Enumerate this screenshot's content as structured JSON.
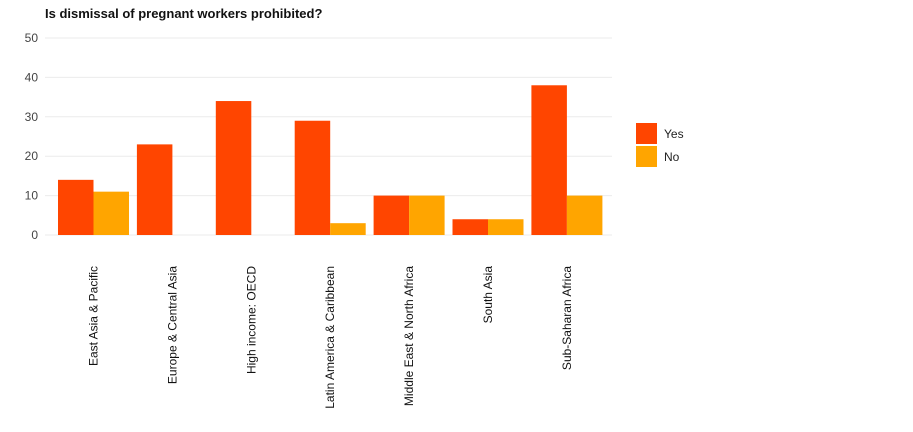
{
  "chart_data": {
    "type": "bar",
    "title": "Is dismissal of pregnant workers prohibited?",
    "xlabel": "",
    "ylabel": "",
    "categories": [
      "East Asia & Pacific",
      "Europe & Central Asia",
      "High income: OECD",
      "Latin America & Caribbean",
      "Middle East & North Africa",
      "South Asia",
      "Sub-Saharan Africa"
    ],
    "series": [
      {
        "name": "Yes",
        "values": [
          14,
          23,
          34,
          29,
          10,
          4,
          38
        ]
      },
      {
        "name": "No",
        "values": [
          11,
          0,
          0,
          3,
          10,
          4,
          10
        ]
      }
    ],
    "ylim": [
      0,
      50
    ],
    "yticks": [
      0,
      10,
      20,
      30,
      40,
      50
    ],
    "grid": true,
    "legend_position": "right",
    "colors": {
      "Yes": "#ff4500",
      "No": "#ffa500",
      "grid": "#ebebeb"
    }
  }
}
